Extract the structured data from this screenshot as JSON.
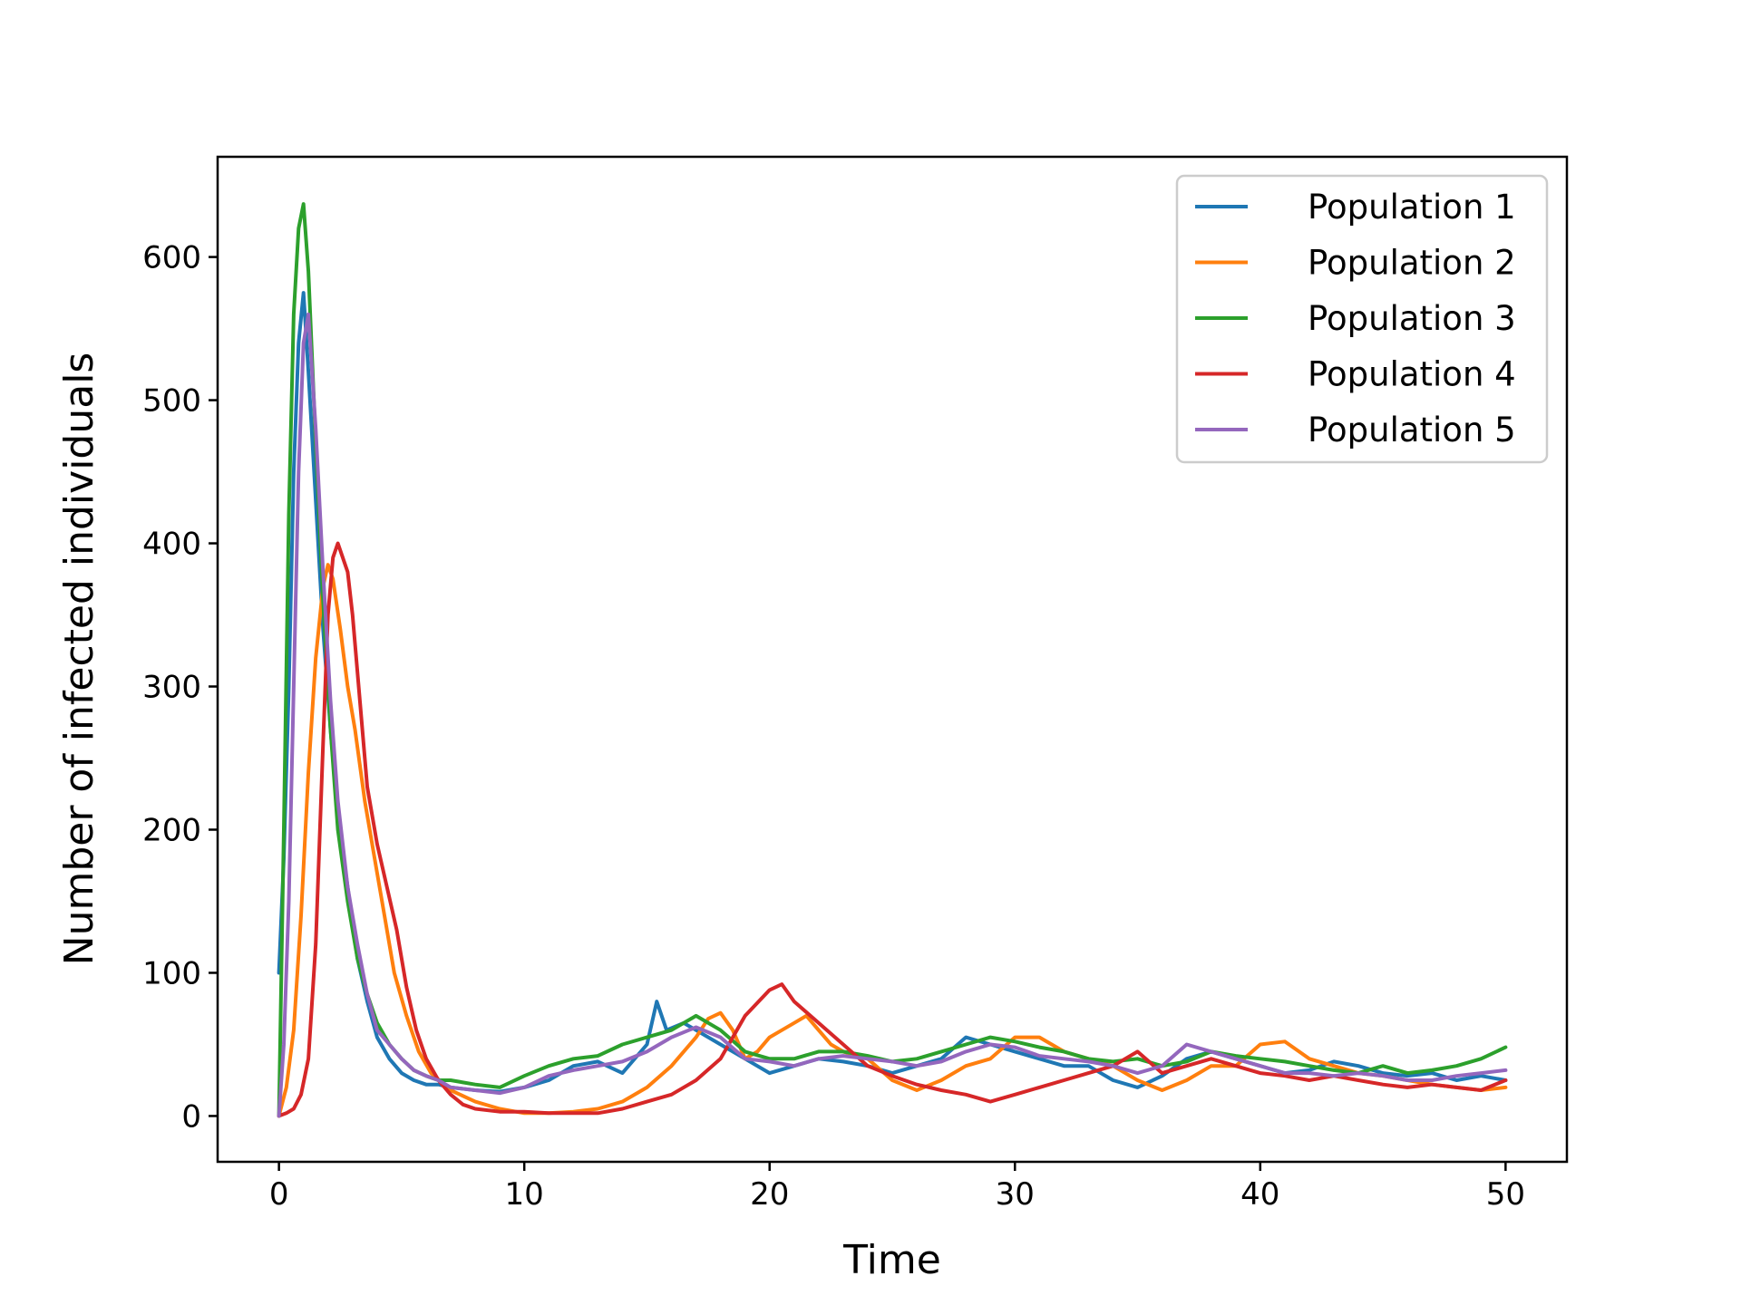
{
  "chart_data": {
    "type": "line",
    "title": "",
    "xlabel": "Time",
    "ylabel": "Number of infected individuals",
    "xlim": [
      -2.5,
      52.5
    ],
    "ylim": [
      -32,
      670
    ],
    "xticks": [
      0,
      10,
      20,
      30,
      40,
      50
    ],
    "yticks": [
      0,
      100,
      200,
      300,
      400,
      500,
      600
    ],
    "grid": false,
    "legend_position": "top-right",
    "series": [
      {
        "name": "Population 1",
        "color": "#1f77b4",
        "x": [
          0,
          0.2,
          0.4,
          0.6,
          0.8,
          1.0,
          1.2,
          1.5,
          1.8,
          2.1,
          2.4,
          2.8,
          3.2,
          3.6,
          4.0,
          4.5,
          5.0,
          5.5,
          6.0,
          6.5,
          7.0,
          8.0,
          9.0,
          10.0,
          11.0,
          12.0,
          13.0,
          14.0,
          15.0,
          15.4,
          15.8,
          16.5,
          17.0,
          18.0,
          19.0,
          20.0,
          21.0,
          22.0,
          23.0,
          24.0,
          25.0,
          26.0,
          27.0,
          28.0,
          29.0,
          30.0,
          31.0,
          32.0,
          33.0,
          34.0,
          35.0,
          36.0,
          37.0,
          38.0,
          39.0,
          40.0,
          41.0,
          42.0,
          43.0,
          44.0,
          45.0,
          46.0,
          47.0,
          48.0,
          49.0,
          50.0
        ],
        "y": [
          100,
          180,
          300,
          450,
          540,
          575,
          520,
          430,
          340,
          270,
          210,
          160,
          110,
          80,
          55,
          40,
          30,
          25,
          22,
          22,
          20,
          18,
          17,
          20,
          25,
          35,
          38,
          30,
          50,
          80,
          60,
          65,
          60,
          50,
          40,
          30,
          35,
          40,
          38,
          35,
          30,
          35,
          40,
          55,
          50,
          45,
          40,
          35,
          35,
          25,
          20,
          28,
          40,
          45,
          40,
          35,
          30,
          32,
          38,
          35,
          30,
          28,
          30,
          25,
          28,
          25
        ]
      },
      {
        "name": "Population 2",
        "color": "#ff7f0e",
        "x": [
          0,
          0.3,
          0.6,
          0.9,
          1.2,
          1.5,
          1.8,
          2.0,
          2.2,
          2.5,
          2.8,
          3.1,
          3.5,
          3.9,
          4.3,
          4.7,
          5.2,
          5.7,
          6.2,
          7.0,
          8.0,
          9.0,
          10.0,
          11.0,
          12.0,
          13.0,
          14.0,
          15.0,
          16.0,
          17.0,
          17.5,
          18.0,
          18.5,
          19.0,
          19.5,
          20.0,
          20.5,
          21.0,
          21.5,
          22.0,
          22.5,
          23.0,
          24.0,
          25.0,
          26.0,
          27.0,
          28.0,
          29.0,
          30.0,
          31.0,
          32.0,
          33.0,
          34.0,
          35.0,
          36.0,
          37.0,
          38.0,
          39.0,
          40.0,
          41.0,
          42.0,
          43.0,
          44.0,
          45.0,
          46.0,
          47.0,
          48.0,
          49.0,
          50.0
        ],
        "y": [
          0,
          20,
          60,
          140,
          240,
          320,
          370,
          385,
          375,
          340,
          300,
          270,
          220,
          180,
          140,
          100,
          70,
          45,
          30,
          18,
          10,
          5,
          2,
          2,
          3,
          5,
          10,
          20,
          35,
          55,
          68,
          72,
          60,
          40,
          45,
          55,
          60,
          65,
          70,
          60,
          50,
          45,
          40,
          25,
          18,
          25,
          35,
          40,
          55,
          55,
          45,
          40,
          35,
          25,
          18,
          25,
          35,
          35,
          50,
          52,
          40,
          35,
          30,
          28,
          25,
          22,
          20,
          18,
          20
        ]
      },
      {
        "name": "Population 3",
        "color": "#2ca02c",
        "x": [
          0,
          0.2,
          0.4,
          0.6,
          0.8,
          1.0,
          1.2,
          1.5,
          1.8,
          2.1,
          2.4,
          2.8,
          3.2,
          3.6,
          4.0,
          4.5,
          5.0,
          5.5,
          6.0,
          6.5,
          7.0,
          8.0,
          9.0,
          10.0,
          11.0,
          12.0,
          13.0,
          14.0,
          15.0,
          16.0,
          17.0,
          18.0,
          19.0,
          20.0,
          21.0,
          22.0,
          23.0,
          24.0,
          25.0,
          26.0,
          27.0,
          28.0,
          29.0,
          30.0,
          31.0,
          32.0,
          33.0,
          34.0,
          35.0,
          36.0,
          37.0,
          38.0,
          39.0,
          40.0,
          41.0,
          42.0,
          43.0,
          44.0,
          45.0,
          46.0,
          47.0,
          48.0,
          49.0,
          50.0
        ],
        "y": [
          0,
          200,
          420,
          560,
          620,
          637,
          590,
          470,
          360,
          270,
          200,
          150,
          110,
          85,
          65,
          50,
          40,
          32,
          28,
          25,
          25,
          22,
          20,
          28,
          35,
          40,
          42,
          50,
          55,
          60,
          70,
          60,
          45,
          40,
          40,
          45,
          45,
          42,
          38,
          40,
          45,
          50,
          55,
          52,
          48,
          45,
          40,
          38,
          40,
          35,
          38,
          45,
          42,
          40,
          38,
          35,
          32,
          30,
          35,
          30,
          32,
          35,
          40,
          48
        ]
      },
      {
        "name": "Population 4",
        "color": "#d62728",
        "x": [
          0,
          0.3,
          0.6,
          0.9,
          1.2,
          1.5,
          1.8,
          2.0,
          2.2,
          2.4,
          2.6,
          2.8,
          3.0,
          3.3,
          3.6,
          4.0,
          4.4,
          4.8,
          5.2,
          5.6,
          6.0,
          6.5,
          7.0,
          7.5,
          8.0,
          9.0,
          10.0,
          11.0,
          12.0,
          13.0,
          14.0,
          15.0,
          16.0,
          17.0,
          18.0,
          19.0,
          20.0,
          20.5,
          21.0,
          22.0,
          23.0,
          24.0,
          25.0,
          26.0,
          27.0,
          28.0,
          29.0,
          30.0,
          31.0,
          32.0,
          33.0,
          34.0,
          35.0,
          36.0,
          37.0,
          38.0,
          39.0,
          40.0,
          41.0,
          42.0,
          43.0,
          44.0,
          45.0,
          46.0,
          47.0,
          48.0,
          49.0,
          50.0
        ],
        "y": [
          0,
          2,
          5,
          15,
          40,
          120,
          260,
          350,
          390,
          400,
          390,
          380,
          350,
          290,
          230,
          190,
          160,
          130,
          90,
          60,
          40,
          25,
          15,
          8,
          5,
          3,
          3,
          2,
          2,
          2,
          5,
          10,
          15,
          25,
          40,
          70,
          88,
          92,
          80,
          65,
          50,
          35,
          28,
          22,
          18,
          15,
          10,
          15,
          20,
          25,
          30,
          35,
          45,
          30,
          35,
          40,
          35,
          30,
          28,
          25,
          28,
          25,
          22,
          20,
          22,
          20,
          18,
          25
        ]
      },
      {
        "name": "Population 5",
        "color": "#9467bd",
        "x": [
          0,
          0.2,
          0.4,
          0.6,
          0.8,
          1.0,
          1.2,
          1.5,
          1.8,
          2.1,
          2.4,
          2.8,
          3.2,
          3.6,
          4.0,
          4.5,
          5.0,
          5.5,
          6.0,
          6.5,
          7.0,
          8.0,
          9.0,
          10.0,
          11.0,
          12.0,
          13.0,
          14.0,
          15.0,
          16.0,
          17.0,
          18.0,
          19.0,
          20.0,
          21.0,
          22.0,
          23.0,
          24.0,
          25.0,
          26.0,
          27.0,
          28.0,
          29.0,
          30.0,
          31.0,
          32.0,
          33.0,
          34.0,
          35.0,
          36.0,
          37.0,
          38.0,
          39.0,
          40.0,
          41.0,
          42.0,
          43.0,
          44.0,
          45.0,
          46.0,
          47.0,
          48.0,
          49.0,
          50.0
        ],
        "y": [
          0,
          50,
          150,
          300,
          450,
          540,
          560,
          480,
          380,
          290,
          220,
          160,
          120,
          85,
          60,
          50,
          40,
          32,
          28,
          25,
          20,
          18,
          16,
          20,
          28,
          32,
          35,
          38,
          45,
          55,
          62,
          55,
          40,
          38,
          35,
          40,
          42,
          40,
          38,
          35,
          38,
          45,
          50,
          48,
          42,
          40,
          38,
          35,
          30,
          35,
          50,
          45,
          40,
          35,
          30,
          30,
          28,
          30,
          28,
          25,
          25,
          28,
          30,
          32
        ]
      }
    ]
  }
}
